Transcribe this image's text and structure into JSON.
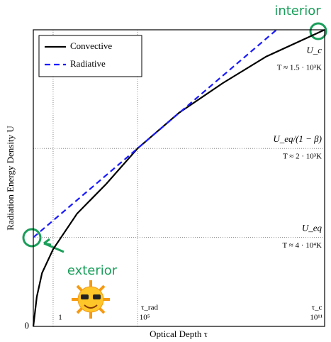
{
  "chart_data": {
    "type": "line",
    "xlabel": "Optical Depth τ",
    "ylabel": "Radiation Energy Density U",
    "xlim": [
      0,
      1
    ],
    "ylim": [
      0,
      1
    ],
    "xticks": [
      {
        "value": 0.068,
        "label": "1"
      },
      {
        "value": 0.358,
        "label": "10⁵"
      },
      {
        "value": 1,
        "label": "10¹¹"
      }
    ],
    "yticks": [
      {
        "value": 0,
        "label": "0"
      },
      {
        "value": 0.3,
        "label": "U_eq"
      },
      {
        "value": 0.6,
        "label": "U_eq/(1 − β)"
      },
      {
        "value": 1,
        "label": "U_c"
      }
    ],
    "ytick_notes": [
      "T ≈ 1.5 · 10³K",
      "T ≈ 2 · 10³K",
      "T ≈ 4 · 10⁴K"
    ],
    "xtick_symbols": [
      "τ_rad",
      "τ_c"
    ],
    "annotations": [
      "interior",
      "exterior"
    ],
    "grid": true,
    "legend": "upper left",
    "series": [
      {
        "name": "Convective",
        "color": "#000000",
        "style": "solid",
        "x": [
          0,
          0.012,
          0.03,
          0.068,
          0.15,
          0.25,
          0.358,
          0.5,
          0.65,
          0.8,
          1
        ],
        "values": [
          0,
          0.1,
          0.18,
          0.26,
          0.38,
          0.48,
          0.6,
          0.72,
          0.82,
          0.91,
          1
        ]
      },
      {
        "name": "Radiative",
        "color": "#1a1aff",
        "style": "dashed",
        "x": [
          0,
          0.835
        ],
        "values": [
          0.3,
          1
        ]
      }
    ]
  }
}
